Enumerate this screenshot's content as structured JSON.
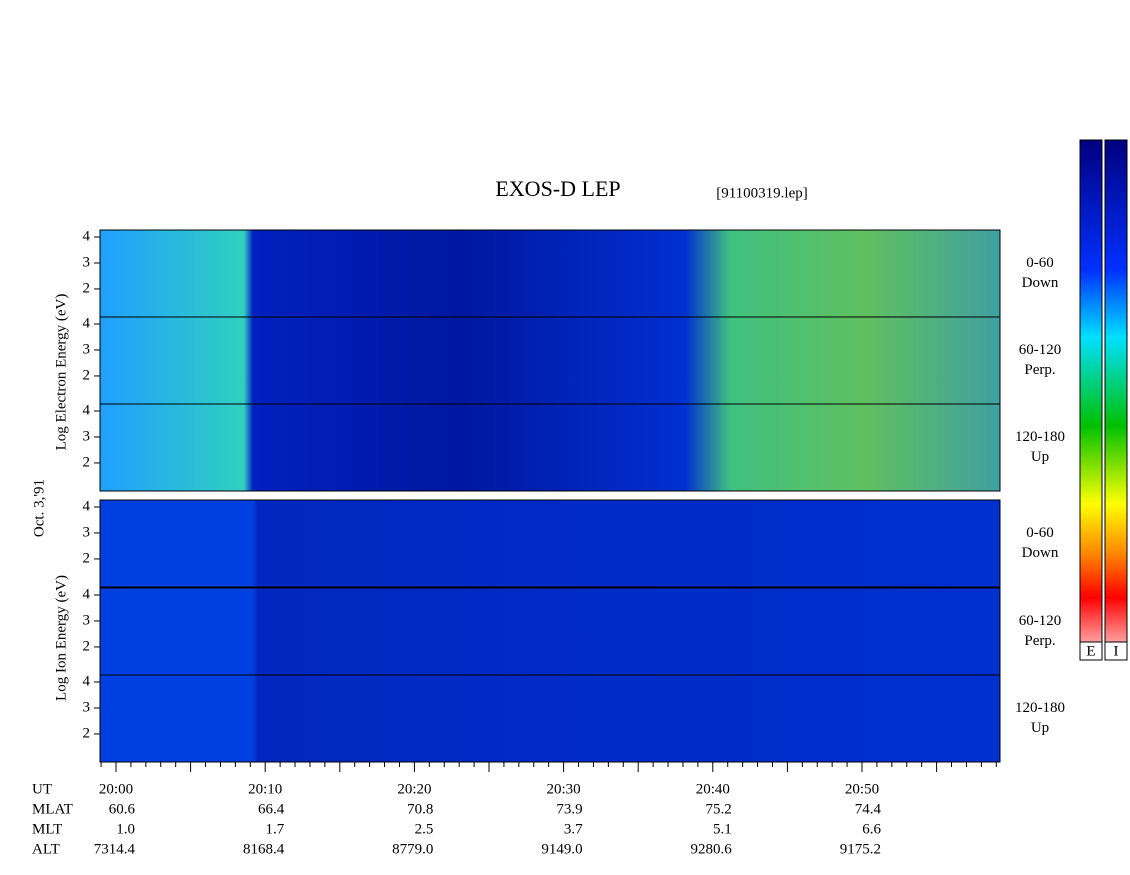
{
  "title": "EXOS-D LEP",
  "file": "[91100319.lep]",
  "date_label": "Oct. 3,'91",
  "electron_axis_label": "Log Electron Energy (eV)",
  "ion_axis_label": "Log Ion Energy (eV)",
  "energy_axis": {
    "ylim": [
      0.92,
      4.27
    ],
    "yticks": [
      2,
      3,
      4
    ]
  },
  "panels": [
    {
      "range": "0-60",
      "direction": "Down"
    },
    {
      "range": "60-120",
      "direction": "Perp."
    },
    {
      "range": "120-180",
      "direction": "Up"
    },
    {
      "range": "0-60",
      "direction": "Down"
    },
    {
      "range": "60-120",
      "direction": "Perp."
    },
    {
      "range": "120-180",
      "direction": "Up"
    }
  ],
  "colorbar_labels": [
    "E",
    "I"
  ],
  "orbit_table": {
    "rows": [
      {
        "label": "UT",
        "values": [
          "20:00",
          "20:10",
          "20:20",
          "20:30",
          "20:40",
          "20:50"
        ]
      },
      {
        "label": "MLAT",
        "values": [
          "60.6",
          "66.4",
          "70.8",
          "73.9",
          "75.2",
          "74.4"
        ]
      },
      {
        "label": "MLT",
        "values": [
          "1.0",
          "1.7",
          "2.5",
          "3.7",
          "5.1",
          "6.6"
        ]
      },
      {
        "label": "ALT",
        "values": [
          "7314.4",
          "8168.4",
          "8779.0",
          "9149.0",
          "9280.6",
          "9175.2"
        ]
      }
    ]
  }
}
